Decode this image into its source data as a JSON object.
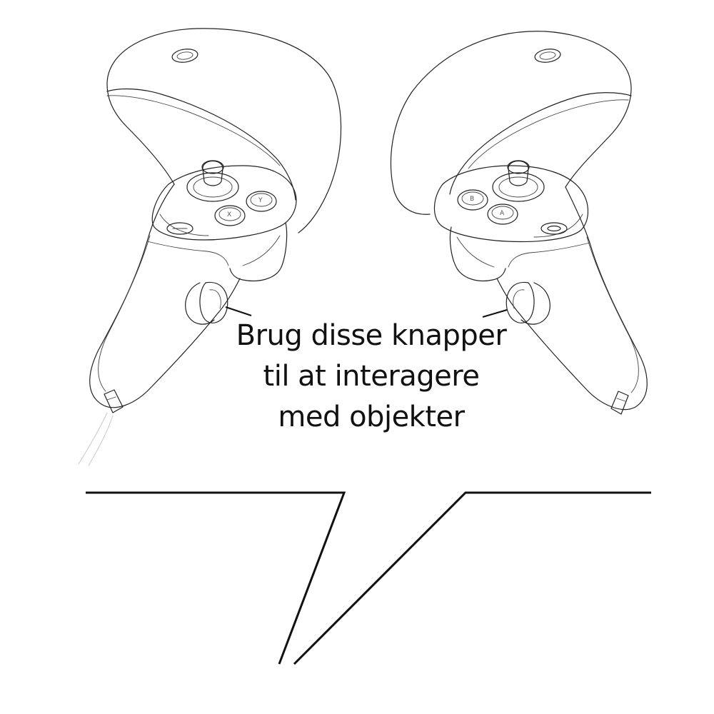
{
  "caption": {
    "lines": [
      "Brug disse knapper",
      "til at interagere",
      "med objekter"
    ]
  },
  "left_controller": {
    "buttons": [
      "X",
      "Y"
    ],
    "menu_button": "menu-icon"
  },
  "right_controller": {
    "buttons": [
      "A",
      "B"
    ],
    "menu_button": "oculus-icon"
  }
}
